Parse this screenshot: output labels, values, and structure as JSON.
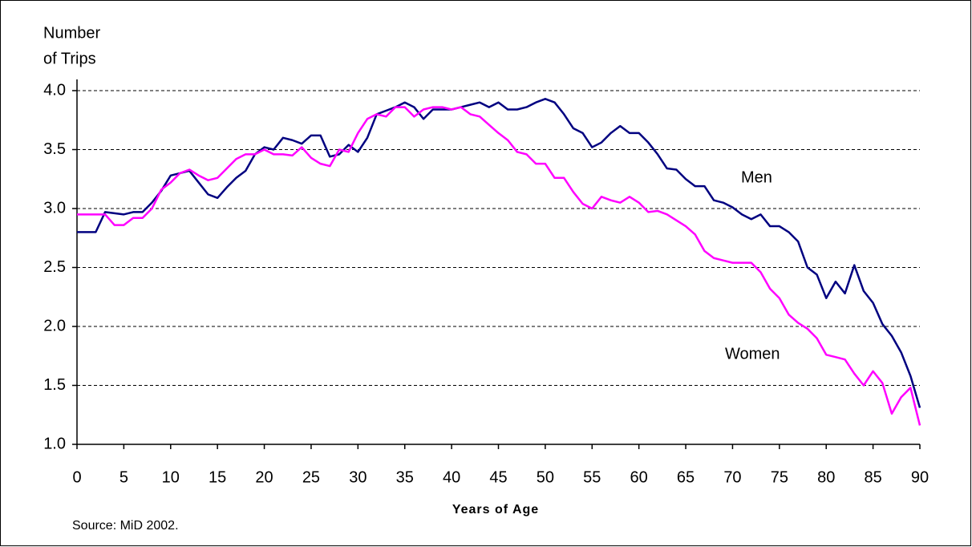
{
  "chart_data": {
    "type": "line",
    "ylabel_lines": [
      "Number",
      "of Trips"
    ],
    "xlabel": "Years of Age",
    "source": "Source: MiD 2002.",
    "annotations": [
      "Men",
      "Women"
    ],
    "x": [
      0,
      1,
      2,
      3,
      4,
      5,
      6,
      7,
      8,
      9,
      10,
      11,
      12,
      13,
      14,
      15,
      16,
      17,
      18,
      19,
      20,
      21,
      22,
      23,
      24,
      25,
      26,
      27,
      28,
      29,
      30,
      31,
      32,
      33,
      34,
      35,
      36,
      37,
      38,
      39,
      40,
      41,
      42,
      43,
      44,
      45,
      46,
      47,
      48,
      49,
      50,
      51,
      52,
      53,
      54,
      55,
      56,
      57,
      58,
      59,
      60,
      61,
      62,
      63,
      64,
      65,
      66,
      67,
      68,
      69,
      70,
      71,
      72,
      73,
      74,
      75,
      76,
      77,
      78,
      79,
      80,
      81,
      82,
      83,
      84,
      85,
      86,
      87,
      88,
      89,
      90
    ],
    "series": [
      {
        "name": "Men",
        "color": "#000080",
        "values": [
          2.8,
          2.8,
          2.8,
          2.97,
          2.96,
          2.95,
          2.97,
          2.97,
          3.05,
          3.15,
          3.28,
          3.3,
          3.32,
          3.22,
          3.12,
          3.09,
          3.18,
          3.26,
          3.32,
          3.46,
          3.52,
          3.5,
          3.6,
          3.58,
          3.55,
          3.62,
          3.62,
          3.44,
          3.46,
          3.54,
          3.48,
          3.6,
          3.8,
          3.83,
          3.86,
          3.9,
          3.86,
          3.76,
          3.84,
          3.84,
          3.84,
          3.86,
          3.88,
          3.9,
          3.86,
          3.9,
          3.84,
          3.84,
          3.86,
          3.9,
          3.93,
          3.9,
          3.8,
          3.68,
          3.64,
          3.52,
          3.56,
          3.64,
          3.7,
          3.64,
          3.64,
          3.56,
          3.46,
          3.34,
          3.33,
          3.25,
          3.19,
          3.19,
          3.07,
          3.05,
          3.01,
          2.95,
          2.91,
          2.95,
          2.85,
          2.85,
          2.8,
          2.72,
          2.5,
          2.44,
          2.24,
          2.38,
          2.28,
          2.52,
          2.3,
          2.2,
          2.02,
          1.92,
          1.78,
          1.58,
          1.31
        ]
      },
      {
        "name": "Women",
        "color": "#ff00ff",
        "values": [
          2.95,
          2.95,
          2.95,
          2.95,
          2.86,
          2.86,
          2.92,
          2.92,
          3.0,
          3.16,
          3.22,
          3.3,
          3.33,
          3.28,
          3.24,
          3.26,
          3.34,
          3.42,
          3.46,
          3.46,
          3.5,
          3.46,
          3.46,
          3.45,
          3.52,
          3.43,
          3.38,
          3.36,
          3.5,
          3.48,
          3.64,
          3.76,
          3.8,
          3.78,
          3.86,
          3.86,
          3.78,
          3.84,
          3.86,
          3.86,
          3.84,
          3.86,
          3.8,
          3.78,
          3.71,
          3.64,
          3.58,
          3.48,
          3.46,
          3.38,
          3.38,
          3.26,
          3.26,
          3.14,
          3.04,
          3.0,
          3.1,
          3.07,
          3.05,
          3.1,
          3.05,
          2.97,
          2.98,
          2.95,
          2.9,
          2.85,
          2.78,
          2.64,
          2.58,
          2.56,
          2.54,
          2.54,
          2.54,
          2.46,
          2.32,
          2.24,
          2.1,
          2.03,
          1.98,
          1.9,
          1.76,
          1.74,
          1.72,
          1.6,
          1.5,
          1.62,
          1.52,
          1.26,
          1.4,
          1.48,
          1.16
        ]
      }
    ],
    "xlim": [
      0,
      90
    ],
    "xticks": [
      0,
      5,
      10,
      15,
      20,
      25,
      30,
      35,
      40,
      45,
      50,
      55,
      60,
      65,
      70,
      75,
      80,
      85,
      90
    ],
    "ylim": [
      1,
      4
    ],
    "yticks": [
      {
        "value": 1,
        "label": "1.0"
      },
      1.5,
      {
        "value": 2,
        "label": "2.0"
      },
      2.5,
      {
        "value": 3,
        "label": "3.0"
      },
      3.5,
      {
        "value": 4,
        "label": "4.0"
      }
    ],
    "grid": true
  }
}
